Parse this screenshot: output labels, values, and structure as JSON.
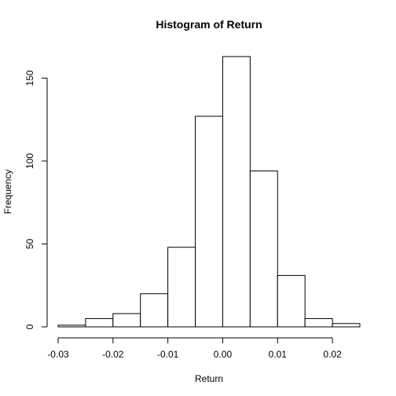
{
  "chart_data": {
    "type": "bar",
    "title": "Histogram of Return",
    "xlabel": "Return",
    "ylabel": "Frequency",
    "bin_edges": [
      -0.03,
      -0.025,
      -0.02,
      -0.015,
      -0.01,
      -0.005,
      0.0,
      0.005,
      0.01,
      0.015,
      0.02,
      0.025
    ],
    "values": [
      1,
      5,
      8,
      20,
      48,
      127,
      163,
      94,
      31,
      5,
      2
    ],
    "xlim": [
      -0.03,
      0.025
    ],
    "ylim": [
      0,
      163
    ],
    "x_ticks": [
      -0.03,
      -0.02,
      -0.01,
      0.0,
      0.01,
      0.02
    ],
    "x_tick_labels": [
      "-0.03",
      "-0.02",
      "-0.01",
      "0.00",
      "0.01",
      "0.02"
    ],
    "y_ticks": [
      0,
      50,
      100,
      150
    ],
    "y_tick_labels": [
      "0",
      "50",
      "100",
      "150"
    ],
    "grid": false,
    "bar_fill": "#ffffff",
    "bar_stroke": "#000000"
  }
}
